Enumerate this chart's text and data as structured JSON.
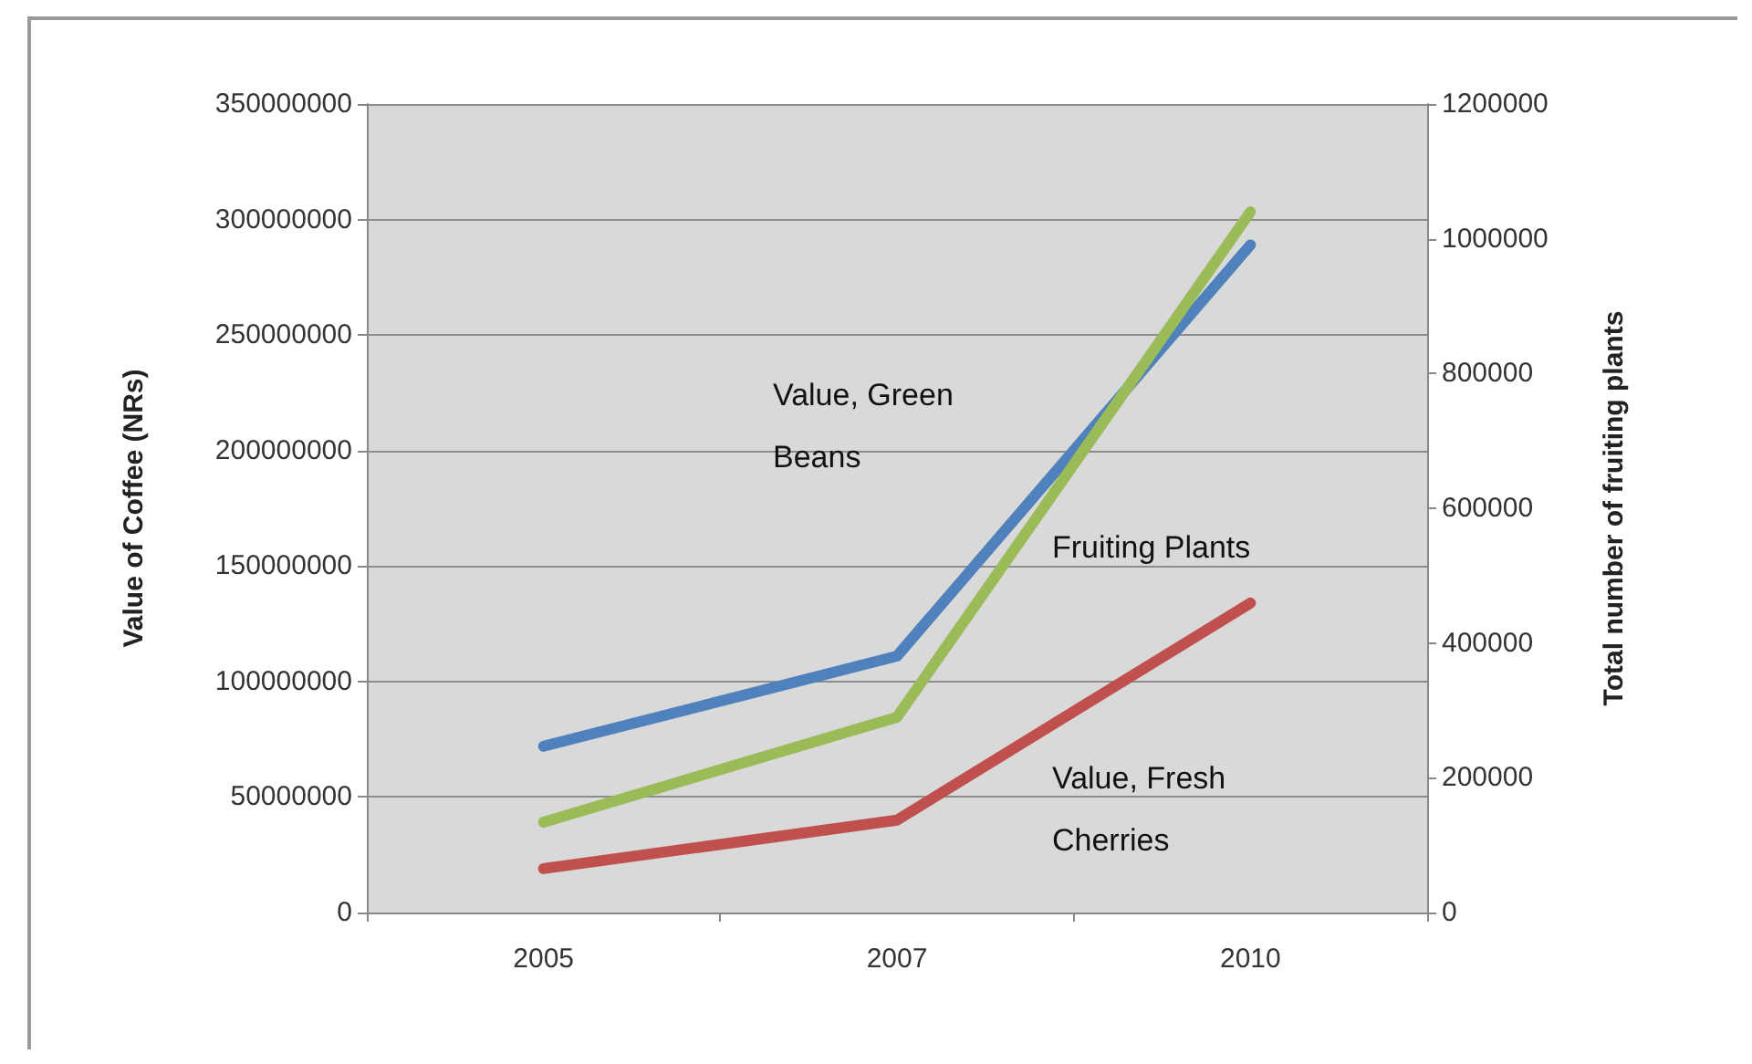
{
  "chart_data": {
    "type": "line",
    "categories": [
      "2005",
      "2007",
      "2010"
    ],
    "ylabel": "Value of Coffee (NRs)",
    "y2label": "Total number of fruiting plants",
    "ylim": [
      0,
      350000000
    ],
    "yticks": [
      0,
      50000000,
      100000000,
      150000000,
      200000000,
      250000000,
      300000000,
      350000000
    ],
    "y2lim": [
      0,
      1200000
    ],
    "y2ticks": [
      0,
      200000,
      400000,
      600000,
      800000,
      1000000,
      1200000
    ],
    "grid": "y",
    "legend": false,
    "marker": "none",
    "line_style": "solid",
    "series": [
      {
        "name": "Value, Green Beans",
        "color": "#4f81bd",
        "values": [
          72000000,
          111000000,
          289000000
        ]
      },
      {
        "name": "Fruiting Plants",
        "color": "#9bbb59",
        "axis": "y2",
        "values": [
          134000,
          290000,
          1040000
        ]
      },
      {
        "name": "Value, Fresh Cherries",
        "color": "#c0504d",
        "values": [
          19000000,
          40000000,
          134000000
        ]
      }
    ]
  }
}
